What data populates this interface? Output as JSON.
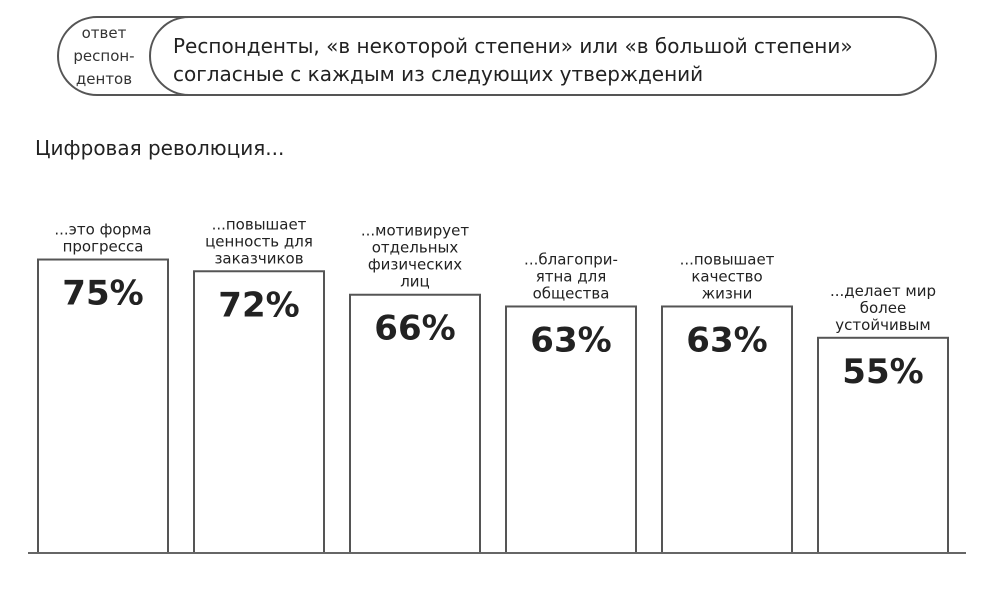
{
  "header": {
    "label_lines": [
      "ответ",
      "респон-",
      "дентов"
    ],
    "text_lines": [
      "Респонденты, «в некоторой степени» или «в большой степени»",
      "согласные с каждым из следующих утверждений"
    ]
  },
  "subtitle": "Цифровая  революция...",
  "chart_data": {
    "type": "bar",
    "categories": [
      [
        "...это форма",
        "прогресса"
      ],
      [
        "...повышает",
        "ценность для",
        "заказчиков"
      ],
      [
        "...мотивирует",
        "отдельных",
        "физических",
        "лиц"
      ],
      [
        "...благопри-",
        "ятна для",
        "общества"
      ],
      [
        "...повышает",
        "качество",
        "жизни"
      ],
      [
        "...делает мир",
        "более",
        "устойчивым"
      ]
    ],
    "values": [
      75,
      72,
      66,
      63,
      63,
      55
    ],
    "value_labels": [
      "75%",
      "72%",
      "66%",
      "63%",
      "63%",
      "55%"
    ],
    "unit": "%",
    "legend": "none",
    "grid": false
  }
}
